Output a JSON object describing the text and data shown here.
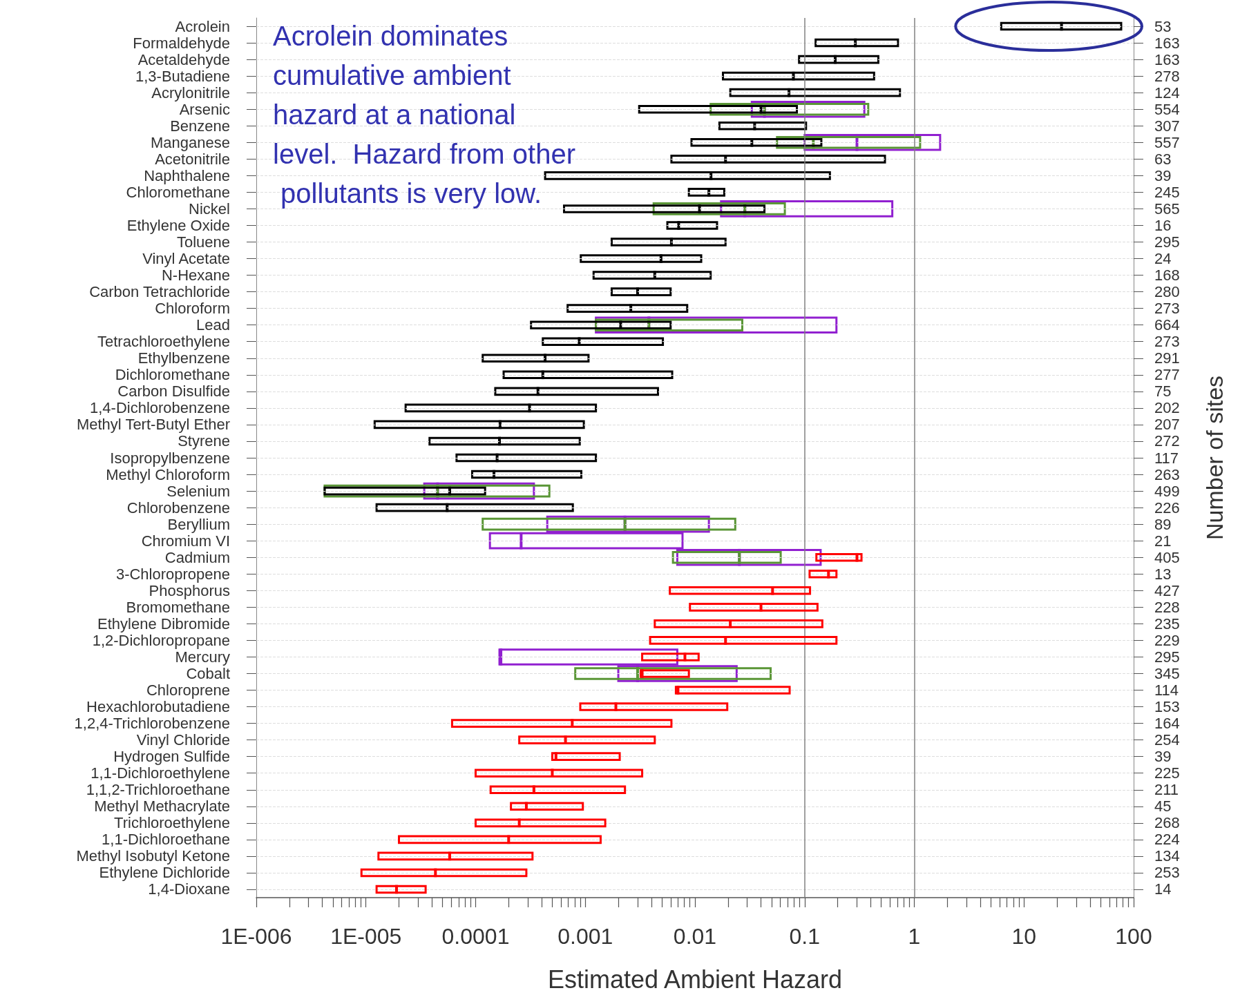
{
  "chart_data": {
    "type": "box",
    "orientation": "horizontal",
    "log": "x",
    "grid": "y",
    "xlabel": "Estimated Ambient Hazard",
    "y2label": "Number of sites",
    "annotations": [
      "Acrolein dominates cumulative ambient hazard at a national level.  Hazard from other pollutants is very low."
    ],
    "categories": [
      "Acrolein",
      "Formaldehyde",
      "Acetaldehyde",
      "1,3-Butadiene",
      "Acrylonitrile",
      "Arsenic",
      "Benzene",
      "Manganese",
      "Acetonitrile",
      "Naphthalene",
      "Chloromethane",
      "Nickel",
      "Ethylene Oxide",
      "Toluene",
      "Vinyl Acetate",
      "N-Hexane",
      "Carbon Tetrachloride",
      "Chloroform",
      "Lead",
      "Tetrachloroethylene",
      "Ethylbenzene",
      "Dichloromethane",
      "Carbon Disulfide",
      "1,4-Dichlorobenzene",
      "Methyl Tert-Butyl Ether",
      "Styrene",
      "Isopropylbenzene",
      "Methyl Chloroform",
      "Selenium",
      "Chlorobenzene",
      "Beryllium",
      "Chromium VI",
      "Cadmium",
      "3-Chloropropene",
      "Phosphorus",
      "Bromomethane",
      "Ethylene Dibromide",
      "1,2-Dichloropropane",
      "Mercury",
      "Cobalt",
      "Chloroprene",
      "Hexachlorobutadiene",
      "1,2,4-Trichlorobenzene",
      "Vinyl Chloride",
      "Hydrogen Sulfide",
      "1,1-Dichloroethylene",
      "1,1,2-Trichloroethane",
      "Methyl Methacrylate",
      "Trichloroethylene",
      "1,1-Dichloroethane",
      "Methyl Isobutyl Ketone",
      "Ethylene Dichloride",
      "1,4-Dioxane"
    ],
    "y2_categories": [
      "53",
      "163",
      "163",
      "278",
      "124",
      "554",
      "307",
      "557",
      "63",
      "39",
      "245",
      "565",
      "16",
      "295",
      "24",
      "168",
      "280",
      "273",
      "664",
      "273",
      "291",
      "277",
      "75",
      "202",
      "207",
      "272",
      "117",
      "263",
      "499",
      "226",
      "89",
      "21",
      "405",
      "13",
      "427",
      "228",
      "235",
      "229",
      "295",
      "345",
      "114",
      "153",
      "164",
      "254",
      "39",
      "225",
      "211",
      "45",
      "268",
      "224",
      "134",
      "253",
      "14"
    ],
    "xlim": [
      1e-06,
      100
    ],
    "xticks": [
      {
        "value": 1e-06,
        "label": "1E-006"
      },
      {
        "value": 2e-06,
        "label": null
      },
      {
        "value": 3e-06,
        "label": null
      },
      {
        "value": 4e-06,
        "label": null
      },
      {
        "value": 5e-06,
        "label": null
      },
      {
        "value": 6e-06,
        "label": null
      },
      {
        "value": 7e-06,
        "label": null
      },
      {
        "value": 8e-06,
        "label": null
      },
      {
        "value": 9e-06,
        "label": null
      },
      {
        "value": 1e-05,
        "label": "1E-005"
      },
      {
        "value": 2e-05,
        "label": null
      },
      {
        "value": 3e-05,
        "label": null
      },
      {
        "value": 4e-05,
        "label": null
      },
      {
        "value": 5e-05,
        "label": null
      },
      {
        "value": 6e-05,
        "label": null
      },
      {
        "value": 7e-05,
        "label": null
      },
      {
        "value": 8e-05,
        "label": null
      },
      {
        "value": 9e-05,
        "label": null
      },
      0.0001,
      {
        "value": 0.0002,
        "label": null
      },
      {
        "value": 0.0003,
        "label": null
      },
      {
        "value": 0.0004,
        "label": null
      },
      {
        "value": 0.0005,
        "label": null
      },
      {
        "value": 0.0006,
        "label": null
      },
      {
        "value": 0.0007,
        "label": null
      },
      {
        "value": 0.0008,
        "label": null
      },
      {
        "value": 0.0009,
        "label": null
      },
      0.001,
      {
        "value": 0.002,
        "label": null
      },
      {
        "value": 0.003,
        "label": null
      },
      {
        "value": 0.004,
        "label": null
      },
      {
        "value": 0.005,
        "label": null
      },
      {
        "value": 0.006,
        "label": null
      },
      {
        "value": 0.007,
        "label": null
      },
      {
        "value": 0.008,
        "label": null
      },
      {
        "value": 0.009,
        "label": null
      },
      0.01,
      {
        "value": 0.02,
        "label": null
      },
      {
        "value": 0.03,
        "label": null
      },
      {
        "value": 0.04,
        "label": null
      },
      {
        "value": 0.05,
        "label": null
      },
      {
        "value": 0.06,
        "label": null
      },
      {
        "value": 0.07,
        "label": null
      },
      {
        "value": 0.08,
        "label": null
      },
      {
        "value": 0.09,
        "label": null
      },
      0.1,
      {
        "value": 0.2,
        "label": null
      },
      {
        "value": 0.3,
        "label": null
      },
      {
        "value": 0.4,
        "label": null
      },
      {
        "value": 0.5,
        "label": null
      },
      {
        "value": 0.6,
        "label": null
      },
      {
        "value": 0.7,
        "label": null
      },
      {
        "value": 0.8,
        "label": null
      },
      {
        "value": 0.9,
        "label": null
      },
      1,
      {
        "value": 2,
        "label": null
      },
      {
        "value": 3,
        "label": null
      },
      {
        "value": 4,
        "label": null
      },
      {
        "value": 5,
        "label": null
      },
      {
        "value": 6,
        "label": null
      },
      {
        "value": 7,
        "label": null
      },
      {
        "value": 8,
        "label": null
      },
      {
        "value": 9,
        "label": null
      },
      10,
      {
        "value": 20,
        "label": null
      },
      {
        "value": 30,
        "label": null
      },
      {
        "value": 40,
        "label": null
      },
      {
        "value": 50,
        "label": null
      },
      {
        "value": 60,
        "label": null
      },
      {
        "value": 70,
        "label": null
      },
      {
        "value": 80,
        "label": null
      },
      {
        "value": 90,
        "label": null
      },
      100
    ],
    "ref_lines": [
      {
        "axis": "x",
        "value": 0.1,
        "color": "#808080"
      },
      {
        "axis": "x",
        "value": 1,
        "color": "#808080"
      }
    ],
    "series": [
      {
        "color": "#9120d0",
        "boxes": [
          null,
          null,
          null,
          null,
          null,
          {
            "low": 0.033,
            "q1": 0.033,
            "median": 0.043,
            "q3": 0.35,
            "high": 0.35
          },
          null,
          {
            "low": 0.1,
            "q1": 0.1,
            "median": 0.3,
            "q3": 1.72,
            "high": 1.72
          },
          null,
          null,
          null,
          {
            "low": 0.0173,
            "q1": 0.0173,
            "median": 0.0285,
            "q3": 0.63,
            "high": 0.63
          },
          null,
          null,
          null,
          null,
          null,
          null,
          {
            "low": 0.00125,
            "q1": 0.00125,
            "median": 0.0038,
            "q3": 0.195,
            "high": 0.195
          },
          null,
          null,
          null,
          null,
          null,
          null,
          null,
          null,
          null,
          {
            "low": 3.4e-05,
            "q1": 3.4e-05,
            "median": 4.5e-05,
            "q3": 0.00034,
            "high": 0.00034
          },
          null,
          {
            "low": 0.00045,
            "q1": 0.00045,
            "median": 0.0023,
            "q3": 0.0134,
            "high": 0.0134
          },
          {
            "low": 0.000135,
            "q1": 0.000135,
            "median": 0.00026,
            "q3": 0.0077,
            "high": 0.0077
          },
          {
            "low": 0.0069,
            "q1": 0.0069,
            "median": 0.0254,
            "q3": 0.14,
            "high": 0.14
          },
          null,
          null,
          null,
          null,
          null,
          {
            "low": 0.000165,
            "q1": 0.000165,
            "median": 0.00017,
            "q3": 0.0069,
            "high": 0.0069
          },
          {
            "low": 0.002,
            "q1": 0.002,
            "median": 0.003,
            "q3": 0.024,
            "high": 0.024
          },
          null,
          null,
          null,
          null,
          null,
          null,
          null,
          null,
          null,
          null,
          null,
          null,
          null
        ]
      },
      {
        "color": "#5a9636",
        "boxes": [
          null,
          null,
          null,
          null,
          null,
          {
            "low": 0.0139,
            "q1": 0.0139,
            "median": 0.043,
            "q3": 0.38,
            "high": 0.38
          },
          null,
          {
            "low": 0.056,
            "q1": 0.056,
            "median": 0.12,
            "q3": 1.13,
            "high": 1.13
          },
          null,
          null,
          null,
          {
            "low": 0.0042,
            "q1": 0.0042,
            "median": 0.0285,
            "q3": 0.066,
            "high": 0.066
          },
          null,
          null,
          null,
          null,
          null,
          null,
          {
            "low": 0.00125,
            "q1": 0.00125,
            "median": 0.0038,
            "q3": 0.027,
            "high": 0.027
          },
          null,
          null,
          null,
          null,
          null,
          null,
          null,
          null,
          null,
          {
            "low": 4.2e-06,
            "q1": 4.2e-06,
            "median": 4.5e-05,
            "q3": 0.00047,
            "high": 0.00047
          },
          null,
          {
            "low": 0.000116,
            "q1": 0.000116,
            "median": 0.0023,
            "q3": 0.0233,
            "high": 0.0233
          },
          null,
          {
            "low": 0.0063,
            "q1": 0.0063,
            "median": 0.0254,
            "q3": 0.0605,
            "high": 0.0605
          },
          null,
          null,
          null,
          null,
          null,
          null,
          {
            "low": 0.00081,
            "q1": 0.00081,
            "median": 0.003,
            "q3": 0.049,
            "high": 0.049
          },
          null,
          null,
          null,
          null,
          null,
          null,
          null,
          null,
          null,
          null,
          null,
          null,
          null
        ]
      },
      {
        "color": "#000000",
        "boxes": [
          {
            "low": 6.2,
            "q1": 6.2,
            "median": 22,
            "q3": 77,
            "high": 77
          },
          {
            "low": 0.126,
            "q1": 0.126,
            "median": 0.29,
            "q3": 0.71,
            "high": 0.71
          },
          {
            "low": 0.089,
            "q1": 0.089,
            "median": 0.19,
            "q3": 0.47,
            "high": 0.47
          },
          {
            "low": 0.018,
            "q1": 0.018,
            "median": 0.079,
            "q3": 0.43,
            "high": 0.43
          },
          {
            "low": 0.021,
            "q1": 0.021,
            "median": 0.072,
            "q3": 0.74,
            "high": 0.74
          },
          {
            "low": 0.0031,
            "q1": 0.0031,
            "median": 0.04,
            "q3": 0.085,
            "high": 0.085
          },
          {
            "low": 0.0167,
            "q1": 0.0167,
            "median": 0.035,
            "q3": 0.103,
            "high": 0.103
          },
          {
            "low": 0.0093,
            "q1": 0.0093,
            "median": 0.033,
            "q3": 0.142,
            "high": 0.142
          },
          {
            "low": 0.0061,
            "q1": 0.0061,
            "median": 0.019,
            "q3": 0.54,
            "high": 0.54
          },
          {
            "low": 0.00043,
            "q1": 0.00043,
            "median": 0.014,
            "q3": 0.17,
            "high": 0.17
          },
          {
            "low": 0.0088,
            "q1": 0.0088,
            "median": 0.0134,
            "q3": 0.0185,
            "high": 0.0185
          },
          {
            "low": 0.00064,
            "q1": 0.00064,
            "median": 0.011,
            "q3": 0.043,
            "high": 0.043
          },
          {
            "low": 0.0056,
            "q1": 0.0056,
            "median": 0.0071,
            "q3": 0.0159,
            "high": 0.0159
          },
          {
            "low": 0.00174,
            "q1": 0.00174,
            "median": 0.0061,
            "q3": 0.019,
            "high": 0.019
          },
          {
            "low": 0.00091,
            "q1": 0.00091,
            "median": 0.0049,
            "q3": 0.0114,
            "high": 0.0114
          },
          {
            "low": 0.00119,
            "q1": 0.00119,
            "median": 0.0043,
            "q3": 0.0139,
            "high": 0.0139
          },
          {
            "low": 0.00174,
            "q1": 0.00174,
            "median": 0.003,
            "q3": 0.006,
            "high": 0.006
          },
          {
            "low": 0.00069,
            "q1": 0.00069,
            "median": 0.0026,
            "q3": 0.0085,
            "high": 0.0085
          },
          {
            "low": 0.00032,
            "q1": 0.00032,
            "median": 0.0021,
            "q3": 0.006,
            "high": 0.006
          },
          {
            "low": 0.00041,
            "q1": 0.00041,
            "median": 0.00088,
            "q3": 0.0051,
            "high": 0.0051
          },
          {
            "low": 0.000116,
            "q1": 0.000116,
            "median": 0.00043,
            "q3": 0.00107,
            "high": 0.00107
          },
          {
            "low": 0.00018,
            "q1": 0.00018,
            "median": 0.00041,
            "q3": 0.0062,
            "high": 0.0062
          },
          {
            "low": 0.000151,
            "q1": 0.000151,
            "median": 0.00037,
            "q3": 0.0046,
            "high": 0.0046
          },
          {
            "low": 2.3e-05,
            "q1": 2.3e-05,
            "median": 0.00031,
            "q3": 0.00125,
            "high": 0.00125
          },
          {
            "low": 1.2e-05,
            "q1": 1.2e-05,
            "median": 0.000167,
            "q3": 0.00097,
            "high": 0.00097
          },
          {
            "low": 3.8e-05,
            "q1": 3.8e-05,
            "median": 0.000165,
            "q3": 0.00089,
            "high": 0.00089
          },
          {
            "low": 6.7e-05,
            "q1": 6.7e-05,
            "median": 0.000157,
            "q3": 0.00125,
            "high": 0.00125
          },
          {
            "low": 9.3e-05,
            "q1": 9.3e-05,
            "median": 0.000147,
            "q3": 0.00092,
            "high": 0.00092
          },
          {
            "low": 4.2e-06,
            "q1": 4.2e-06,
            "median": 5.8e-05,
            "q3": 0.000122,
            "high": 0.000122
          },
          {
            "low": 1.25e-05,
            "q1": 1.25e-05,
            "median": 5.5e-05,
            "q3": 0.00077,
            "high": 0.00077
          },
          null,
          null,
          null,
          null,
          null,
          null,
          null,
          null,
          null,
          null,
          null,
          null,
          null,
          null,
          null,
          null,
          null,
          null,
          null,
          null,
          null,
          null,
          null
        ]
      },
      {
        "color": "#ff0000",
        "boxes": [
          null,
          null,
          null,
          null,
          null,
          null,
          null,
          null,
          null,
          null,
          null,
          null,
          null,
          null,
          null,
          null,
          null,
          null,
          null,
          null,
          null,
          null,
          null,
          null,
          null,
          null,
          null,
          null,
          null,
          null,
          null,
          null,
          {
            "low": 0.128,
            "q1": 0.128,
            "median": 0.3,
            "q3": 0.33,
            "high": 0.33
          },
          {
            "low": 0.111,
            "q1": 0.111,
            "median": 0.165,
            "q3": 0.195,
            "high": 0.195
          },
          {
            "low": 0.0059,
            "q1": 0.0059,
            "median": 0.051,
            "q3": 0.112,
            "high": 0.112
          },
          {
            "low": 0.009,
            "q1": 0.009,
            "median": 0.04,
            "q3": 0.131,
            "high": 0.131
          },
          {
            "low": 0.0043,
            "q1": 0.0043,
            "median": 0.021,
            "q3": 0.145,
            "high": 0.145
          },
          {
            "low": 0.0039,
            "q1": 0.0039,
            "median": 0.019,
            "q3": 0.195,
            "high": 0.195
          },
          {
            "low": 0.0033,
            "q1": 0.0033,
            "median": 0.0081,
            "q3": 0.0108,
            "high": 0.0108
          },
          {
            "low": 0.0032,
            "q1": 0.0032,
            "median": 0.0033,
            "q3": 0.0088,
            "high": 0.0088
          },
          {
            "low": 0.0067,
            "q1": 0.0067,
            "median": 0.007,
            "q3": 0.073,
            "high": 0.073
          },
          {
            "low": 0.0009,
            "q1": 0.0009,
            "median": 0.0019,
            "q3": 0.0197,
            "high": 0.0197
          },
          {
            "low": 6.1e-05,
            "q1": 6.1e-05,
            "median": 0.00076,
            "q3": 0.0061,
            "high": 0.0061
          },
          {
            "low": 0.00025,
            "q1": 0.00025,
            "median": 0.00066,
            "q3": 0.0043,
            "high": 0.0043
          },
          {
            "low": 0.0005,
            "q1": 0.0005,
            "median": 0.00054,
            "q3": 0.00206,
            "high": 0.00206
          },
          {
            "low": 0.0001,
            "q1": 0.0001,
            "median": 0.0005,
            "q3": 0.0033,
            "high": 0.0033
          },
          {
            "low": 0.000137,
            "q1": 0.000137,
            "median": 0.00034,
            "q3": 0.0023,
            "high": 0.0023
          },
          {
            "low": 0.00021,
            "q1": 0.00021,
            "median": 0.00029,
            "q3": 0.00095,
            "high": 0.00095
          },
          {
            "low": 0.0001,
            "q1": 0.0001,
            "median": 0.00025,
            "q3": 0.00152,
            "high": 0.00152
          },
          {
            "low": 2e-05,
            "q1": 2e-05,
            "median": 0.0002,
            "q3": 0.00138,
            "high": 0.00138
          },
          {
            "low": 1.3e-05,
            "q1": 1.3e-05,
            "median": 5.8e-05,
            "q3": 0.00033,
            "high": 0.00033
          },
          {
            "low": 9.1e-06,
            "q1": 9.1e-06,
            "median": 4.3e-05,
            "q3": 0.00029,
            "high": 0.00029
          },
          {
            "low": 1.25e-05,
            "q1": 1.25e-05,
            "median": 1.9e-05,
            "q3": 3.5e-05,
            "high": 3.5e-05
          }
        ]
      }
    ]
  }
}
